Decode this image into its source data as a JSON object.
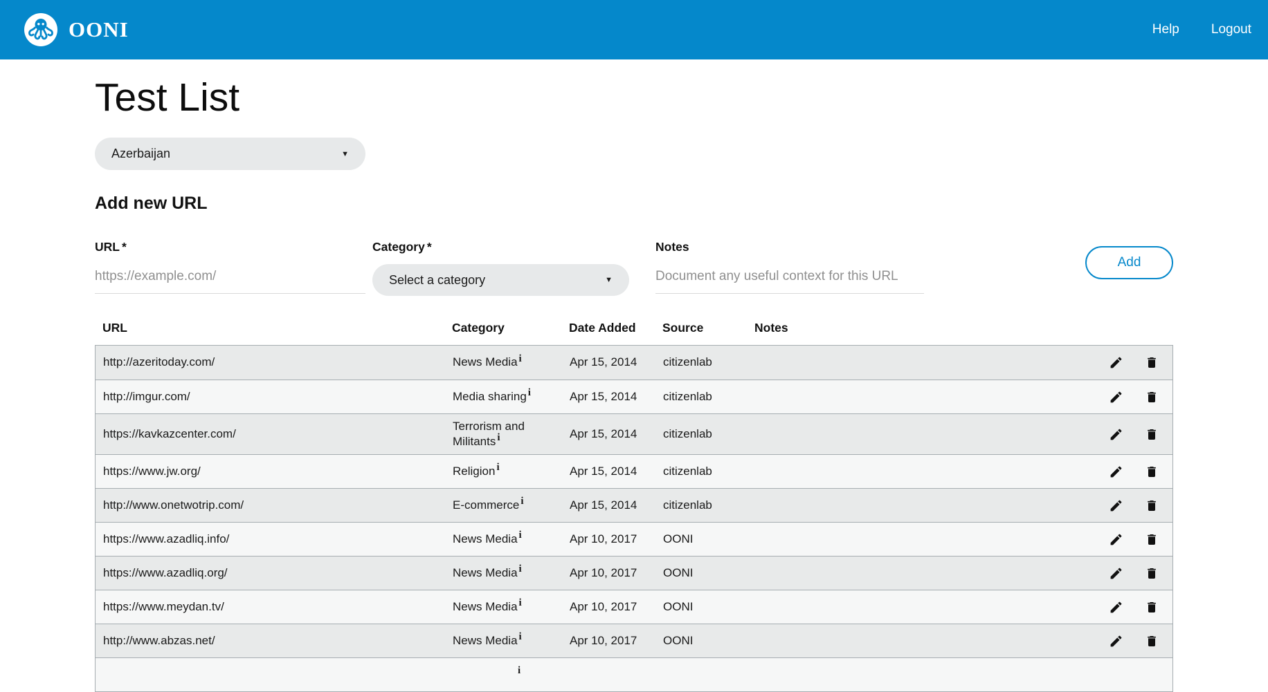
{
  "header": {
    "brand": "OONI",
    "help_label": "Help",
    "logout_label": "Logout"
  },
  "page": {
    "title": "Test List",
    "country_selector": {
      "selected": "Azerbaijan"
    },
    "add_section_title": "Add new URL"
  },
  "form": {
    "required_mark": "*",
    "url_field": {
      "label": "URL",
      "placeholder": "https://example.com/",
      "value": ""
    },
    "category_field": {
      "label": "Category",
      "selected": "Select a category"
    },
    "notes_field": {
      "label": "Notes",
      "placeholder": "Document any useful context for this URL",
      "value": ""
    },
    "add_button_label": "Add"
  },
  "table": {
    "columns": [
      "URL",
      "Category",
      "Date Added",
      "Source",
      "Notes"
    ],
    "rows": [
      {
        "url": "http://azeritoday.com/",
        "category": "News Media",
        "date_added": "Apr 15, 2014",
        "source": "citizenlab",
        "notes": ""
      },
      {
        "url": "http://imgur.com/",
        "category": "Media sharing",
        "date_added": "Apr 15, 2014",
        "source": "citizenlab",
        "notes": ""
      },
      {
        "url": "https://kavkazcenter.com/",
        "category": "Terrorism and Militants",
        "date_added": "Apr 15, 2014",
        "source": "citizenlab",
        "notes": ""
      },
      {
        "url": "https://www.jw.org/",
        "category": "Religion",
        "date_added": "Apr 15, 2014",
        "source": "citizenlab",
        "notes": ""
      },
      {
        "url": "http://www.onetwotrip.com/",
        "category": "E-commerce",
        "date_added": "Apr 15, 2014",
        "source": "citizenlab",
        "notes": ""
      },
      {
        "url": "https://www.azadliq.info/",
        "category": "News Media",
        "date_added": "Apr 10, 2017",
        "source": "OONI",
        "notes": ""
      },
      {
        "url": "https://www.azadliq.org/",
        "category": "News Media",
        "date_added": "Apr 10, 2017",
        "source": "OONI",
        "notes": ""
      },
      {
        "url": "https://www.meydan.tv/",
        "category": "News Media",
        "date_added": "Apr 10, 2017",
        "source": "OONI",
        "notes": ""
      },
      {
        "url": "http://www.abzas.net/",
        "category": "News Media",
        "date_added": "Apr 10, 2017",
        "source": "OONI",
        "notes": ""
      }
    ],
    "partial_row_visible": true,
    "info_icon_glyph": "i",
    "caret_glyph": "▼"
  },
  "icons": {
    "logo": "ooni-octopus-icon",
    "dropdown": "chevron-down-icon",
    "category_info": "info-icon",
    "edit": "pencil-icon",
    "delete": "trash-icon"
  },
  "colors": {
    "header_background": "#0588cb",
    "accent": "#0588cb",
    "row_shaded": "#e8eaea",
    "row_plain": "#f6f7f7",
    "table_border": "#a6adb1"
  }
}
